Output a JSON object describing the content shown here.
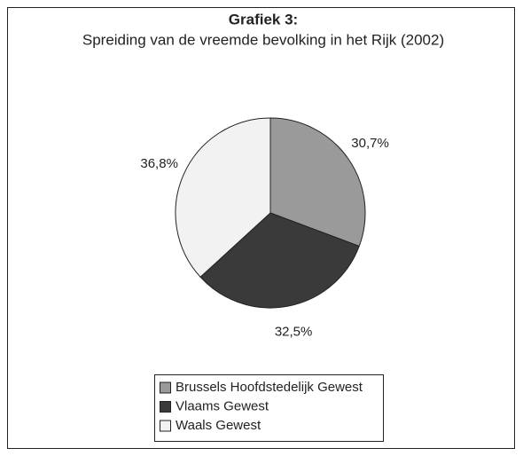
{
  "chart_data": {
    "type": "pie",
    "title": "Grafiek 3:",
    "subtitle": "Spreiding van de vreemde bevolking in het Rijk (2002)",
    "categories": [
      "Brussels Hoofdstedelijk Gewest",
      "Vlaams Gewest",
      "Waals Gewest"
    ],
    "values": [
      30.7,
      32.5,
      36.8
    ],
    "value_labels": [
      "30,7%",
      "32,5%",
      "36,8%"
    ],
    "colors": [
      "#9a9a9a",
      "#3a3a3a",
      "#f2f2f2"
    ]
  }
}
